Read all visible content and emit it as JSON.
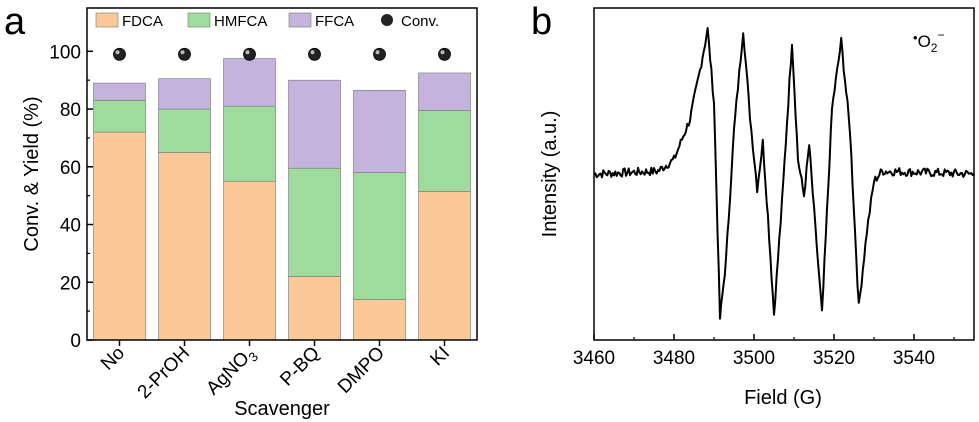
{
  "panels": [
    {
      "letter": "a",
      "chart_data": {
        "type": "bar",
        "stacked": true,
        "categories": [
          "No",
          "2-PrOH",
          "AgNO3",
          "P-BQ",
          "DMPO",
          "KI"
        ],
        "category_labels": [
          {
            "base": "No",
            "sub": ""
          },
          {
            "base": "2-PrOH",
            "sub": ""
          },
          {
            "base": "AgNO",
            "sub": "3"
          },
          {
            "base": "P-BQ",
            "sub": ""
          },
          {
            "base": "DMPO",
            "sub": ""
          },
          {
            "base": "KI",
            "sub": ""
          }
        ],
        "series": [
          {
            "name": "FDCA",
            "color": "#fbc898",
            "values": [
              72,
              65,
              55,
              22,
              14,
              51.5
            ]
          },
          {
            "name": "HMFCA",
            "color": "#9ddc9c",
            "values": [
              11,
              15,
              26,
              37.5,
              44,
              28
            ]
          },
          {
            "name": "FFCA",
            "color": "#c5b3de",
            "values": [
              6,
              10.5,
              16.5,
              30.5,
              28.5,
              13
            ]
          }
        ],
        "conversion": {
          "name": "Conv.",
          "values": [
            100,
            100,
            100,
            100,
            100,
            100
          ]
        },
        "xlabel": "Scavenger",
        "ylabel": "Conv. & Yield (%)",
        "ylim": [
          0,
          115
        ],
        "yticks": [
          0,
          20,
          40,
          60,
          80,
          100
        ],
        "legend_position": "top",
        "grid": false
      }
    },
    {
      "letter": "b",
      "chart_data": {
        "type": "line",
        "annotation": {
          "dot": "•",
          "base": "O",
          "sub": "2",
          "sup": "−"
        },
        "xlabel": "Field (G)",
        "ylabel": "Intensity (a.u.)",
        "xlim": [
          3460,
          3555
        ],
        "xticks": [
          3460,
          3480,
          3500,
          3520,
          3540
        ],
        "ylim": [
          -1.15,
          1.15
        ],
        "yticks_shown": false,
        "series": [
          {
            "name": "",
            "color": "#000000",
            "x": [
              3460.0,
              3476.0,
              3480.0,
              3484.0,
              3486.5,
              3488.4,
              3490.0,
              3491.5,
              3493.0,
              3495.0,
              3497.3,
              3499.0,
              3500.8,
              3502.2,
              3503.5,
              3505.0,
              3507.0,
              3509.5,
              3511.0,
              3512.5,
              3513.8,
              3515.0,
              3517.0,
              3519.5,
              3521.8,
              3524.0,
              3526.2,
              3528.2,
              3530.0,
              3532.0,
              3555.0
            ],
            "y": [
              0.0,
              0.02,
              0.1,
              0.38,
              0.72,
              1.0,
              0.5,
              -1.0,
              -0.6,
              0.3,
              1.0,
              0.4,
              -0.1,
              0.22,
              -0.3,
              -0.97,
              -0.2,
              0.92,
              0.1,
              -0.15,
              0.2,
              -0.25,
              -0.97,
              0.45,
              0.92,
              0.3,
              -0.92,
              -0.4,
              -0.05,
              0.02,
              0.0
            ]
          }
        ]
      }
    }
  ]
}
